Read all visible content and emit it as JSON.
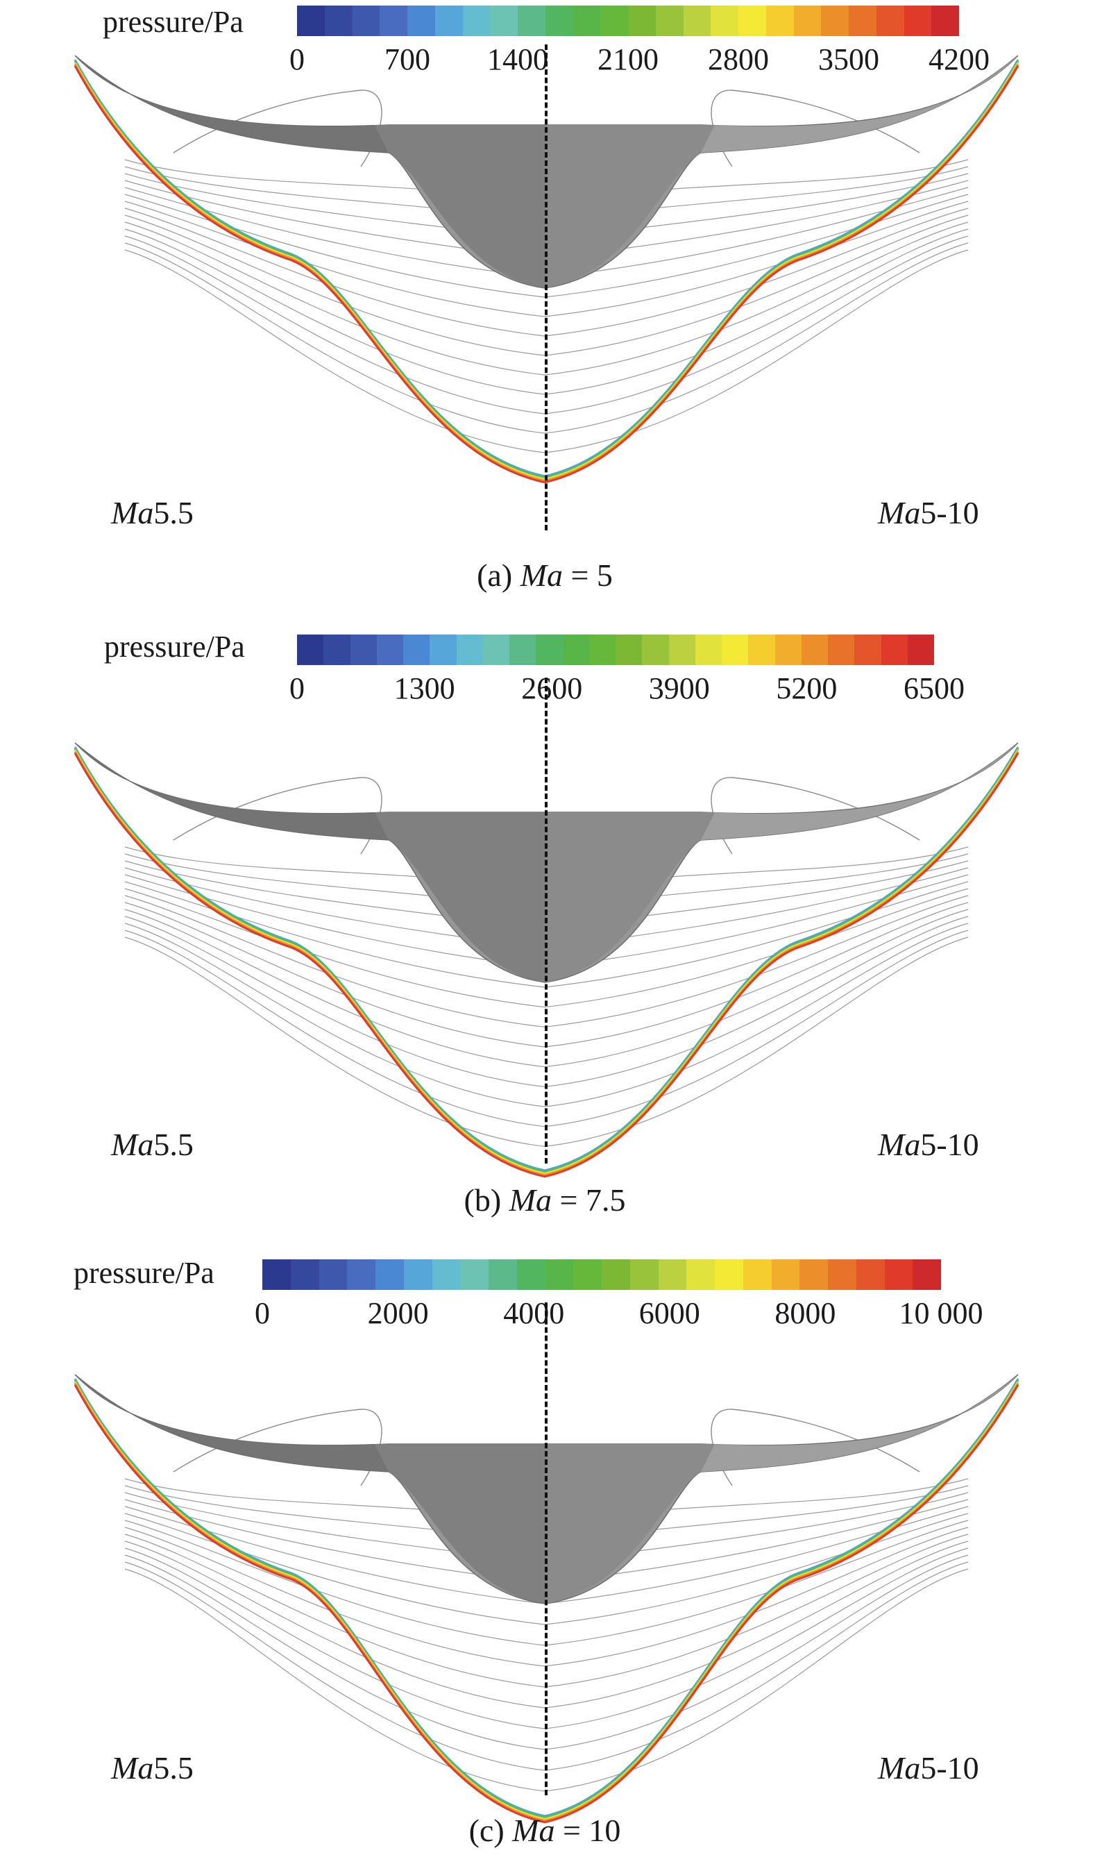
{
  "colorbar_colors": [
    "#2b3a8f",
    "#34489e",
    "#3e58ad",
    "#4a6cc0",
    "#4b88d4",
    "#57a6d9",
    "#63bcd0",
    "#6cc3b3",
    "#5bb98a",
    "#52b55f",
    "#58b648",
    "#66b83a",
    "#7cb833",
    "#98c33a",
    "#bcd13f",
    "#e1e23c",
    "#f4ea36",
    "#f6cd2e",
    "#f2ad2c",
    "#ec8f2a",
    "#e8722a",
    "#e5552b",
    "#e03a2b",
    "#cf2a2b"
  ],
  "panels": [
    {
      "legend_title": "pressure/Pa",
      "ticks": [
        "0",
        "700",
        "1400",
        "2100",
        "2800",
        "3500",
        "4200"
      ],
      "left_label_italic": "Ma",
      "left_label_rest": "5.5",
      "right_label_italic": "Ma",
      "right_label_rest": "5-10",
      "caption_pre": "(a) ",
      "caption_italic": "Ma",
      "caption_post": " = 5"
    },
    {
      "legend_title": "pressure/Pa",
      "ticks": [
        "0",
        "1300",
        "2600",
        "3900",
        "5200",
        "6500"
      ],
      "left_label_italic": "Ma",
      "left_label_rest": "5.5",
      "right_label_italic": "Ma",
      "right_label_rest": "5-10",
      "caption_pre": "(b) ",
      "caption_italic": "Ma",
      "caption_post": " = 7.5"
    },
    {
      "legend_title": "pressure/Pa",
      "ticks": [
        "0",
        "2000",
        "4000",
        "6000",
        "8000",
        "10 000"
      ],
      "left_label_italic": "Ma",
      "left_label_rest": "5.5",
      "right_label_italic": "Ma",
      "right_label_rest": "5-10",
      "caption_pre": "(c) ",
      "caption_italic": "Ma",
      "caption_post": " = 10"
    }
  ],
  "body_shade_colors": [
    "#6e6e6e",
    "#7d7d7d",
    "#8a8a8a",
    "#969696",
    "#a0a0a0"
  ],
  "shock_colors": [
    "#4aa6d6",
    "#5bb95a",
    "#e1e23c",
    "#ec8f2a",
    "#e03a2b"
  ]
}
